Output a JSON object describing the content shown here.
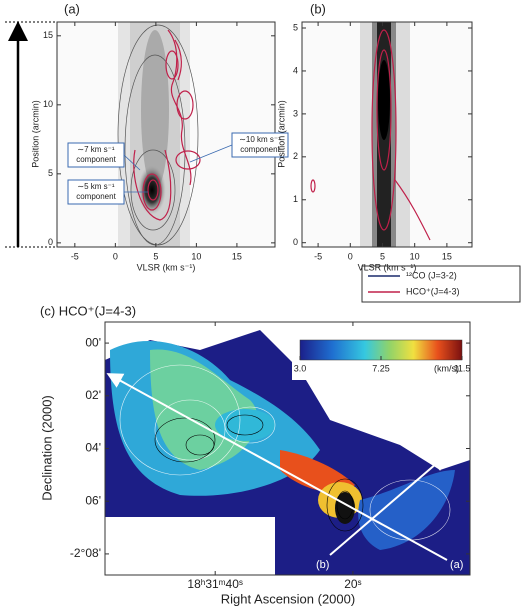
{
  "figure": {
    "panel_a": {
      "label": "(a)",
      "xlabel": "VLSR (km s⁻¹)",
      "ylabel": "Position (arcmin)",
      "xlim": [
        -7.2,
        19.7
      ],
      "ylim": [
        -0.3,
        16
      ],
      "xticks": [
        -5,
        0,
        5,
        10,
        15
      ],
      "yticks": [
        0,
        5,
        10,
        15
      ],
      "annotations": [
        {
          "lines": [
            "∼7 km s⁻¹",
            "component"
          ]
        },
        {
          "lines": [
            "∼5 km s⁻¹",
            "component"
          ]
        },
        {
          "lines": [
            "∼10 km s⁻¹",
            "component"
          ]
        }
      ]
    },
    "panel_b": {
      "label": "(b)",
      "xlabel": "VLSR (km s⁻¹)",
      "ylabel": "Position (arcmin)",
      "xlim": [
        -7.5,
        18.9
      ],
      "ylim": [
        -0.1,
        5.14
      ],
      "xticks": [
        -5,
        0,
        5,
        10,
        15
      ],
      "yticks": [
        0,
        1,
        2,
        3,
        4,
        5
      ]
    },
    "legend": [
      {
        "name": "¹²CO (J=3-2)",
        "color": "#1a2a6c"
      },
      {
        "name": "HCO⁺(J=4-3)",
        "color": "#c0204a"
      }
    ],
    "panel_c": {
      "label": "(c) HCO⁺(J=4-3)",
      "xlabel": "Right Ascension (2000)",
      "ylabel": "Declination (2000)",
      "xlim": [
        56,
        3
      ],
      "ylim": [
        -0.8,
        8.8
      ],
      "xticks": [
        {
          "value": 40,
          "label": "18ʰ31ᵐ40ˢ"
        },
        {
          "value": 20,
          "label": "20ˢ"
        }
      ],
      "yticks": [
        {
          "value": 0,
          "label": "00'"
        },
        {
          "value": 2,
          "label": "02'"
        },
        {
          "value": 4,
          "label": "04'"
        },
        {
          "value": 6,
          "label": "06'"
        },
        {
          "value": 8,
          "label": "-2°08'"
        }
      ],
      "colorbar": {
        "range": [
          3,
          11.5
        ],
        "ticks": [
          {
            "value": 3,
            "label": "3.0"
          },
          7.25,
          {
            "value": 11.5,
            "label": "11.5"
          }
        ],
        "unit": "(km/s)"
      },
      "cut_labels": [
        "(a)",
        "(b)"
      ]
    }
  }
}
